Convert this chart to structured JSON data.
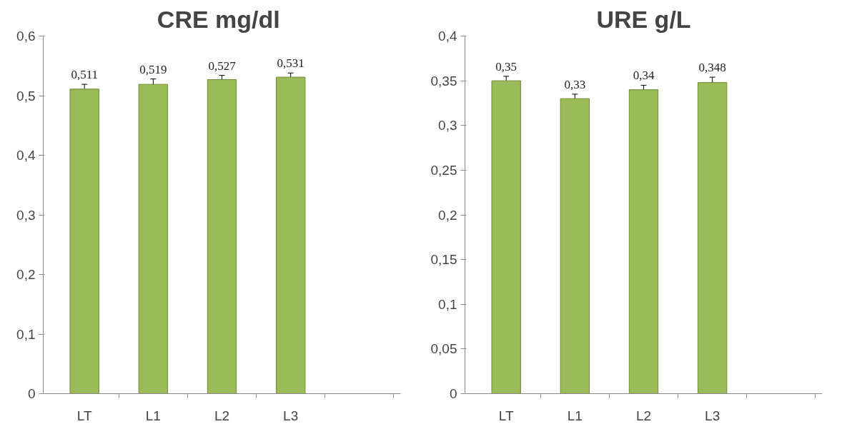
{
  "chart_data": [
    {
      "type": "bar",
      "title": "CRE  mg/dl",
      "categories": [
        "LT",
        "L1",
        "L2",
        "L3",
        null
      ],
      "values": [
        0.511,
        0.519,
        0.527,
        0.531,
        null
      ],
      "color": "#9bbb59",
      "errors": [
        0.008,
        0.009,
        0.007,
        0.007,
        null
      ],
      "value_labels": [
        "0,511",
        "0,519",
        "0,527",
        "0,531",
        null
      ],
      "ylim": [
        0,
        0.6
      ],
      "yticks": [
        0,
        {
          "value": 0.1,
          "label": "0,1"
        },
        {
          "value": 0.2,
          "label": "0,2"
        },
        {
          "value": 0.3,
          "label": "0,3"
        },
        {
          "value": 0.4,
          "label": "0,4"
        },
        {
          "value": 0.5,
          "label": "0,5"
        },
        {
          "value": 0.6,
          "label": "0,6"
        }
      ],
      "grid": false
    },
    {
      "type": "bar",
      "title": "URE g/L",
      "categories": [
        "LT",
        "L1",
        "L2",
        "L3",
        null
      ],
      "values": [
        0.35,
        0.33,
        0.34,
        0.348,
        null
      ],
      "color": "#9bbb59",
      "errors": [
        0.005,
        0.005,
        0.005,
        0.006,
        null
      ],
      "value_labels": [
        "0,35",
        "0,33",
        "0,34",
        "0,348",
        null
      ],
      "ylim": [
        0,
        0.4
      ],
      "yticks": [
        0,
        {
          "value": 0.05,
          "label": "0,05"
        },
        {
          "value": 0.1,
          "label": "0,1"
        },
        {
          "value": 0.15,
          "label": "0,15"
        },
        {
          "value": 0.2,
          "label": "0,2"
        },
        {
          "value": 0.25,
          "label": "0,25"
        },
        {
          "value": 0.3,
          "label": "0,3"
        },
        {
          "value": 0.35,
          "label": "0,35"
        },
        {
          "value": 0.4,
          "label": "0,4"
        }
      ],
      "grid": false
    }
  ]
}
